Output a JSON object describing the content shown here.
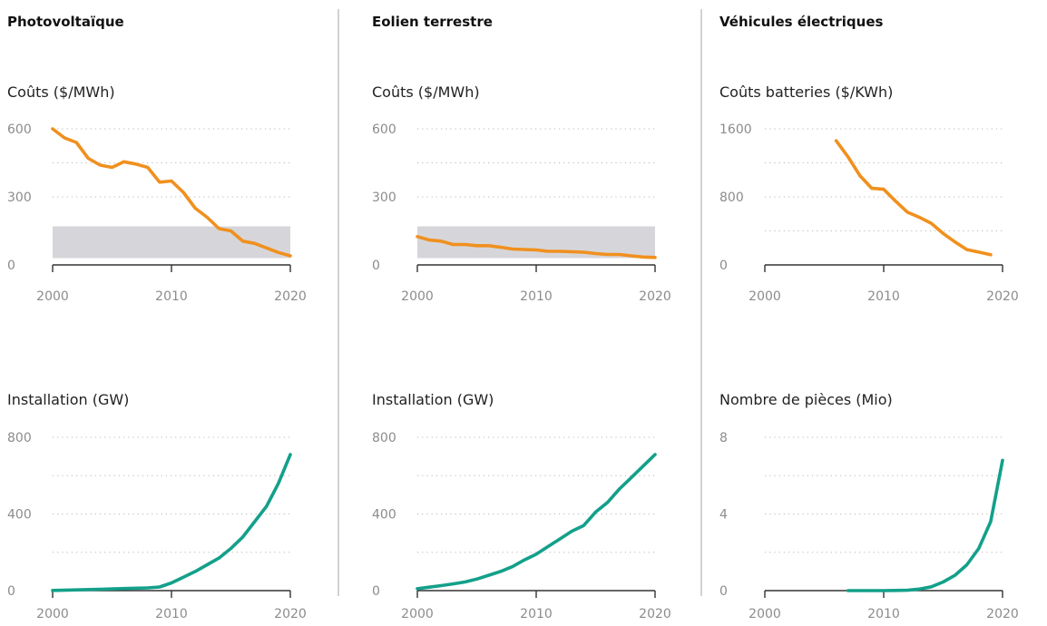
{
  "colors": {
    "cost_line": "#f0901e",
    "install_line": "#13a08a",
    "band": "#d6d6da",
    "grid": "#b8b8b8",
    "divider": "#b4b4b4"
  },
  "chart_data": [
    {
      "type": "line",
      "column_title": "Photovoltaïque",
      "title": "Coûts ($/MWh)",
      "xlim": [
        2000,
        2020
      ],
      "ylim": [
        0,
        600
      ],
      "xticks": [
        2000,
        2010,
        2020
      ],
      "yticks": [
        0,
        300,
        600
      ],
      "band": [
        30,
        170
      ],
      "grid": true,
      "series": [
        {
          "color": "cost",
          "x": [
            2000,
            2001,
            2002,
            2003,
            2004,
            2005,
            2006,
            2007,
            2008,
            2009,
            2010,
            2011,
            2012,
            2013,
            2014,
            2015,
            2016,
            2017,
            2018,
            2019,
            2020
          ],
          "y": [
            600,
            560,
            540,
            470,
            440,
            430,
            455,
            445,
            430,
            365,
            370,
            320,
            250,
            210,
            160,
            150,
            105,
            95,
            75,
            55,
            40
          ]
        }
      ]
    },
    {
      "type": "line",
      "column_title": "Eolien terrestre",
      "title": "Coûts ($/MWh)",
      "xlim": [
        2000,
        2020
      ],
      "ylim": [
        0,
        600
      ],
      "xticks": [
        2000,
        2010,
        2020
      ],
      "yticks": [
        0,
        300,
        600
      ],
      "band": [
        30,
        170
      ],
      "grid": true,
      "series": [
        {
          "color": "cost",
          "x": [
            2000,
            2001,
            2002,
            2003,
            2004,
            2005,
            2006,
            2007,
            2008,
            2009,
            2010,
            2011,
            2012,
            2013,
            2014,
            2015,
            2016,
            2017,
            2018,
            2019,
            2020
          ],
          "y": [
            125,
            110,
            105,
            90,
            90,
            85,
            85,
            78,
            70,
            68,
            66,
            60,
            60,
            58,
            56,
            50,
            46,
            46,
            40,
            35,
            33
          ]
        }
      ]
    },
    {
      "type": "line",
      "column_title": "Véhicules électriques",
      "title": "Coûts batteries ($/KWh)",
      "xlim": [
        2000,
        2020
      ],
      "ylim": [
        0,
        1600
      ],
      "xticks": [
        2000,
        2010,
        2020
      ],
      "yticks": [
        0,
        800,
        1600
      ],
      "grid": true,
      "series": [
        {
          "color": "cost",
          "x": [
            2006,
            2007,
            2008,
            2009,
            2010,
            2011,
            2012,
            2013,
            2014,
            2015,
            2016,
            2017,
            2018,
            2019
          ],
          "y": [
            1460,
            1270,
            1050,
            900,
            890,
            750,
            620,
            560,
            490,
            370,
            270,
            180,
            150,
            120
          ]
        }
      ]
    },
    {
      "type": "line",
      "title": "Installation (GW)",
      "xlim": [
        2000,
        2020
      ],
      "ylim": [
        0,
        800
      ],
      "xticks": [
        2000,
        2010,
        2020
      ],
      "yticks": [
        0,
        400,
        800
      ],
      "grid": true,
      "series": [
        {
          "color": "install",
          "x": [
            2000,
            2002,
            2004,
            2006,
            2008,
            2009,
            2010,
            2011,
            2012,
            2013,
            2014,
            2015,
            2016,
            2017,
            2018,
            2019,
            2020
          ],
          "y": [
            1,
            4,
            7,
            11,
            14,
            19,
            40,
            70,
            100,
            135,
            170,
            220,
            280,
            360,
            440,
            560,
            710
          ]
        }
      ]
    },
    {
      "type": "line",
      "title": "Installation (GW)",
      "xlim": [
        2000,
        2020
      ],
      "ylim": [
        0,
        800
      ],
      "xticks": [
        2000,
        2010,
        2020
      ],
      "yticks": [
        0,
        400,
        800
      ],
      "grid": true,
      "series": [
        {
          "color": "install",
          "x": [
            2000,
            2001,
            2002,
            2003,
            2004,
            2005,
            2006,
            2007,
            2008,
            2009,
            2010,
            2011,
            2012,
            2013,
            2014,
            2015,
            2016,
            2017,
            2018,
            2019,
            2020
          ],
          "y": [
            10,
            18,
            26,
            35,
            45,
            60,
            80,
            100,
            125,
            160,
            190,
            230,
            270,
            310,
            340,
            410,
            460,
            530,
            590,
            650,
            710
          ]
        }
      ]
    },
    {
      "type": "line",
      "title": "Nombre de pièces (Mio)",
      "xlim": [
        2000,
        2020
      ],
      "ylim": [
        0,
        8
      ],
      "xticks": [
        2000,
        2010,
        2020
      ],
      "yticks": [
        0,
        4,
        8
      ],
      "grid": true,
      "series": [
        {
          "color": "install",
          "x": [
            2007,
            2008,
            2009,
            2010,
            2011,
            2012,
            2013,
            2014,
            2015,
            2016,
            2017,
            2018,
            2019,
            2020
          ],
          "y": [
            0,
            0,
            0,
            0,
            0.01,
            0.02,
            0.08,
            0.2,
            0.45,
            0.8,
            1.35,
            2.2,
            3.6,
            6.8
          ]
        }
      ]
    }
  ]
}
